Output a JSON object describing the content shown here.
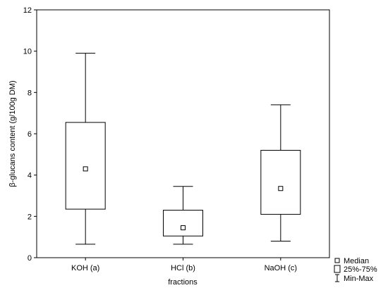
{
  "chart_data": {
    "type": "box",
    "xlabel": "fractions",
    "ylabel": "β-glucans content (g/100g DM)",
    "ylim": [
      0,
      12
    ],
    "yticks": [
      0,
      2,
      4,
      6,
      8,
      10,
      12
    ],
    "categories": [
      "KOH (a)",
      "HCl (b)",
      "NaOH (c)"
    ],
    "boxes": [
      {
        "category": "KOH (a)",
        "min": 0.65,
        "q1": 2.35,
        "median": 4.3,
        "q3": 6.55,
        "max": 9.9
      },
      {
        "category": "HCl (b)",
        "min": 0.65,
        "q1": 1.05,
        "median": 1.45,
        "q3": 2.3,
        "max": 3.45
      },
      {
        "category": "NaOH (c)",
        "min": 0.8,
        "q1": 2.1,
        "median": 3.35,
        "q3": 5.2,
        "max": 7.4
      }
    ],
    "legend": {
      "position": "bottom-right",
      "items": [
        "Median",
        "25%-75%",
        "Min-Max"
      ]
    },
    "grid": false
  }
}
